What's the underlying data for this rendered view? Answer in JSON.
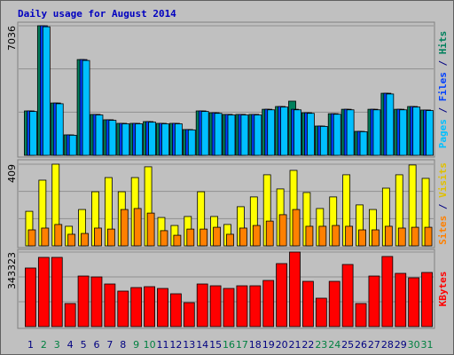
{
  "chart_data": [
    {
      "type": "bar",
      "title": "Daily usage for August 2014",
      "series": [
        {
          "name": "Hits",
          "color": "#00805c",
          "values": [
            2410,
            7036,
            2840,
            1110,
            5200,
            2220,
            1930,
            1735,
            1735,
            1830,
            1735,
            1735,
            1400,
            2410,
            2310,
            2220,
            2220,
            2220,
            2500,
            2650,
            2940,
            2310,
            1590,
            2260,
            2500,
            1300,
            2500,
            3370,
            2500,
            2650,
            2460
          ]
        },
        {
          "name": "Files",
          "color": "#0040ff",
          "values": [
            2410,
            7036,
            2840,
            1110,
            5200,
            2220,
            1930,
            1735,
            1735,
            1830,
            1735,
            1735,
            1400,
            2410,
            2310,
            2220,
            2220,
            2220,
            2500,
            2650,
            2500,
            2310,
            1590,
            2260,
            2500,
            1300,
            2500,
            3370,
            2500,
            2650,
            2460
          ]
        },
        {
          "name": "Pages",
          "color": "#00c0ff",
          "values": [
            2380,
            6980,
            2800,
            1090,
            5150,
            2190,
            1900,
            1710,
            1710,
            1800,
            1710,
            1710,
            1380,
            2380,
            2280,
            2190,
            2190,
            2190,
            2470,
            2620,
            2470,
            2280,
            1570,
            2230,
            2470,
            1280,
            2470,
            3330,
            2470,
            2620,
            2430
          ]
        }
      ],
      "ylim": [
        0,
        7036
      ],
      "yticks": [
        7036
      ],
      "legend_separator": " / "
    },
    {
      "type": "bar",
      "series": [
        {
          "name": "Visits",
          "color": "#ffff00",
          "values": [
            173,
            329,
            409,
            98,
            182,
            271,
            342,
            271,
            342,
            396,
            142,
            102,
            147,
            271,
            147,
            107,
            196,
            245,
            356,
            285,
            378,
            267,
            187,
            245,
            356,
            205,
            182,
            289,
            356,
            405,
            338
          ]
        },
        {
          "name": "Sites",
          "color": "#ff8000",
          "values": [
            80,
            89,
            107,
            58,
            62,
            89,
            84,
            182,
            187,
            164,
            76,
            53,
            84,
            84,
            93,
            58,
            89,
            102,
            124,
            156,
            182,
            98,
            98,
            102,
            98,
            80,
            80,
            98,
            89,
            93,
            93
          ]
        }
      ],
      "ylim": [
        0,
        409
      ],
      "yticks": [
        409
      ],
      "legend_separator": " / "
    },
    {
      "type": "bar",
      "categories": [
        "1",
        "2",
        "3",
        "4",
        "5",
        "6",
        "7",
        "8",
        "9",
        "10",
        "11",
        "12",
        "13",
        "14",
        "15",
        "16",
        "17",
        "18",
        "19",
        "20",
        "21",
        "22",
        "23",
        "24",
        "25",
        "26",
        "27",
        "28",
        "29",
        "30",
        "31"
      ],
      "label_colors": [
        "#000080",
        "#008040",
        "#008040",
        "#000080",
        "#000080",
        "#000080",
        "#000080",
        "#000080",
        "#008040",
        "#008040",
        "#000080",
        "#000080",
        "#000080",
        "#000080",
        "#000080",
        "#008040",
        "#008040",
        "#000080",
        "#000080",
        "#000080",
        "#000080",
        "#000080",
        "#008040",
        "#008040",
        "#000080",
        "#000080",
        "#000080",
        "#000080",
        "#000080",
        "#008040",
        "#008040"
      ],
      "series": [
        {
          "name": "KBytes",
          "color": "#ff0000",
          "values": [
            269800,
            318800,
            318800,
            106300,
            232900,
            228800,
            196200,
            163500,
            179800,
            183900,
            175700,
            151200,
            110300,
            196200,
            188000,
            175700,
            188000,
            188000,
            212500,
            290200,
            343323,
            208400,
            130800,
            208400,
            286100,
            106300,
            232900,
            322900,
            245200,
            224800,
            249300
          ]
        }
      ],
      "ylim": [
        0,
        343323
      ],
      "yticks": [
        343323
      ]
    }
  ]
}
